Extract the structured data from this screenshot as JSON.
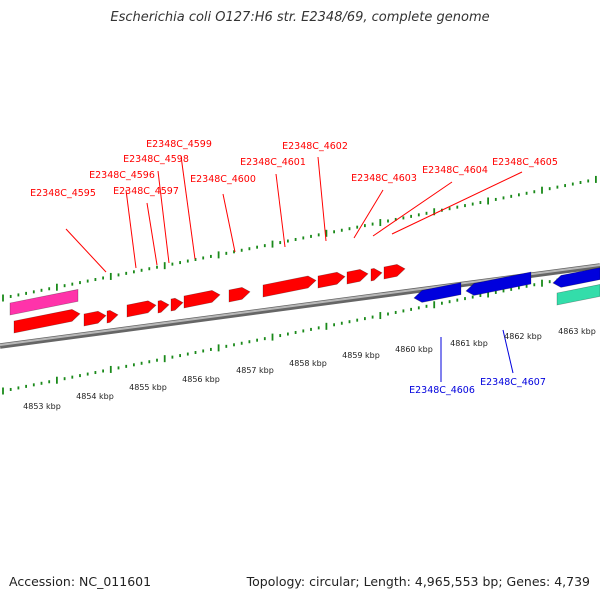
{
  "title": "Escherichia coli O127:H6 str. E2348/69, complete genome",
  "footer": {
    "accession": "Accession: NC_011601",
    "summary": "Topology: circular; Length: 4,965,553 bp; Genes: 4,739"
  },
  "colors": {
    "forward_gene": "#ff0000",
    "reverse_gene": "#0000dd",
    "tick": "#1a8a1a",
    "backbone": "#888888",
    "magenta_feature": "#ff33aa",
    "teal_feature": "#33ddaa"
  },
  "upper_labels": [
    {
      "text": "E2348C_4595"
    },
    {
      "text": "E2348C_4596"
    },
    {
      "text": "E2348C_4597"
    },
    {
      "text": "E2348C_4598"
    },
    {
      "text": "E2348C_4599"
    },
    {
      "text": "E2348C_4600"
    },
    {
      "text": "E2348C_4601"
    },
    {
      "text": "E2348C_4602"
    },
    {
      "text": "E2348C_4603"
    },
    {
      "text": "E2348C_4604"
    },
    {
      "text": "E2348C_4605"
    }
  ],
  "lower_labels": [
    {
      "text": "E2348C_4606"
    },
    {
      "text": "E2348C_4607"
    }
  ],
  "kbp_labels": [
    "4853 kbp",
    "4854 kbp",
    "4855 kbp",
    "4856 kbp",
    "4857 kbp",
    "4858 kbp",
    "4859 kbp",
    "4860 kbp",
    "4861 kbp",
    "4862 kbp",
    "4863 kbp"
  ]
}
